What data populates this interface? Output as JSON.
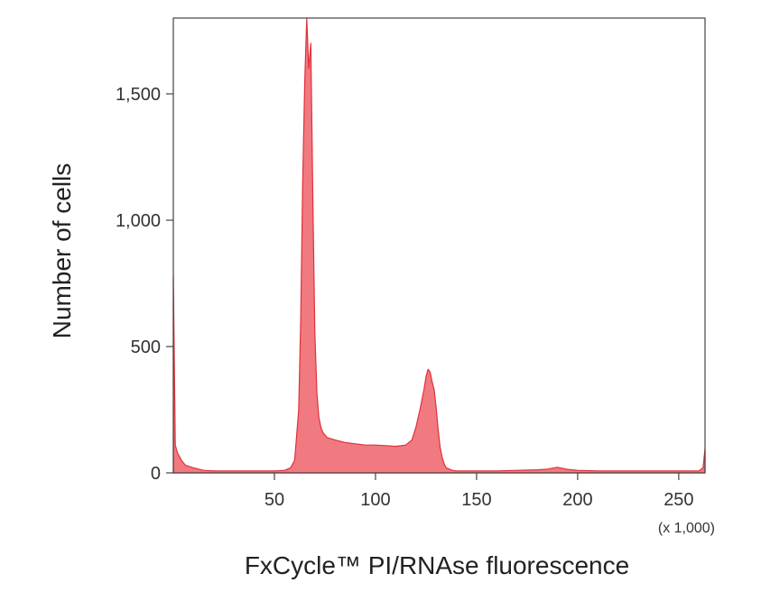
{
  "chart_data": {
    "type": "area",
    "title": "",
    "xlabel": "FxCycle™ PI/RNAse fluorescence",
    "ylabel": "Number of cells",
    "x_unit_note": "(x 1,000)",
    "xlim": [
      0,
      263
    ],
    "ylim": [
      0,
      1800
    ],
    "x_ticks": [
      50,
      100,
      150,
      200,
      250
    ],
    "x_tick_labels": [
      "50",
      "100",
      "150",
      "200",
      "250"
    ],
    "y_ticks": [
      0,
      500,
      1000,
      1500
    ],
    "y_tick_labels": [
      "0",
      "500",
      "1,000",
      "1,500"
    ],
    "grid": false,
    "legend": "none",
    "fill_color": "#f07a80",
    "line_color": "#e0303a",
    "series": [
      {
        "x": [
          0,
          1,
          2,
          4,
          6,
          10,
          15,
          20,
          30,
          40,
          50,
          55,
          58,
          60,
          62,
          63,
          64,
          65,
          66,
          67,
          68,
          69,
          70,
          71,
          72,
          73,
          74,
          75,
          76,
          78,
          80,
          85,
          90,
          95,
          100,
          105,
          110,
          115,
          118,
          120,
          122,
          124,
          125,
          126,
          127,
          128,
          129,
          130,
          131,
          132,
          133,
          134,
          135,
          138,
          140,
          145,
          150,
          160,
          170,
          180,
          185,
          190,
          195,
          200,
          210,
          220,
          230,
          240,
          250,
          260,
          262,
          263
        ],
        "values": [
          780,
          110,
          80,
          50,
          30,
          20,
          10,
          8,
          8,
          8,
          8,
          10,
          20,
          50,
          250,
          600,
          1150,
          1550,
          1800,
          1600,
          1700,
          1100,
          550,
          320,
          220,
          180,
          160,
          150,
          140,
          135,
          130,
          120,
          115,
          110,
          110,
          108,
          105,
          110,
          130,
          180,
          250,
          330,
          380,
          410,
          400,
          360,
          330,
          260,
          170,
          100,
          60,
          35,
          20,
          10,
          8,
          8,
          8,
          8,
          10,
          12,
          15,
          22,
          14,
          10,
          8,
          8,
          8,
          8,
          8,
          8,
          20,
          95
        ]
      }
    ]
  }
}
